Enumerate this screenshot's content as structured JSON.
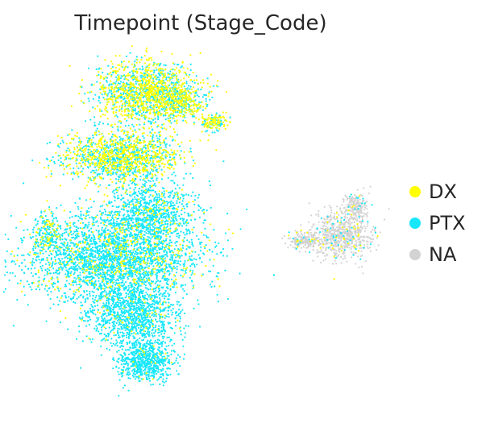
{
  "chart_data": {
    "type": "scatter",
    "title": "Timepoint (Stage_Code)",
    "xlabel": "",
    "ylabel": "",
    "axes_visible": false,
    "grid": false,
    "legend_placement": "right",
    "series": [
      {
        "name": "DX",
        "color": "#ffff00"
      },
      {
        "name": "PTX",
        "color": "#17e7fb"
      },
      {
        "name": "NA",
        "color": "#d3d3d3"
      }
    ]
  }
}
